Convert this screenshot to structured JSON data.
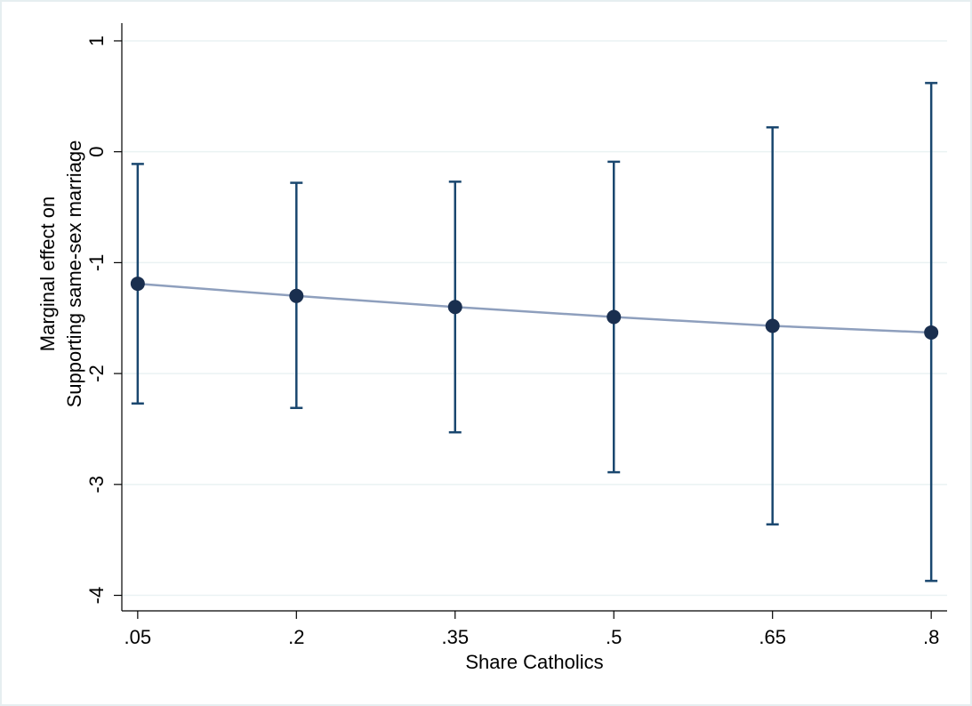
{
  "chart_data": {
    "type": "errorbar",
    "x_label": "Share Catholics",
    "y_label": [
      "Marginal effect on",
      "Supporting same-sex marriage"
    ],
    "x": [
      0.05,
      0.2,
      0.35,
      0.5,
      0.65,
      0.8
    ],
    "values": [
      -1.19,
      -1.3,
      -1.4,
      -1.49,
      -1.57,
      -1.63
    ],
    "lower": [
      -2.27,
      -2.31,
      -2.53,
      -2.89,
      -3.36,
      -3.87
    ],
    "upper": [
      -0.11,
      -0.28,
      -0.27,
      -0.09,
      0.22,
      0.62
    ],
    "color": "#1a2f4f",
    "line_color": "#8e9fbd",
    "errorbar_color": "#1a476f",
    "xlim": [
      0.035,
      0.815
    ],
    "xticks": [
      {
        "value": 0.05,
        "label": ".05"
      },
      {
        "value": 0.2,
        "label": ".2"
      },
      {
        "value": 0.35,
        "label": ".35"
      },
      {
        "value": 0.5,
        "label": ".5"
      },
      {
        "value": 0.65,
        "label": ".65"
      },
      {
        "value": 0.8,
        "label": ".8"
      }
    ],
    "ylim": [
      -4.14,
      1.16
    ],
    "yticks": [
      1,
      0,
      -1,
      -2,
      -3,
      -4
    ],
    "grid": true
  }
}
